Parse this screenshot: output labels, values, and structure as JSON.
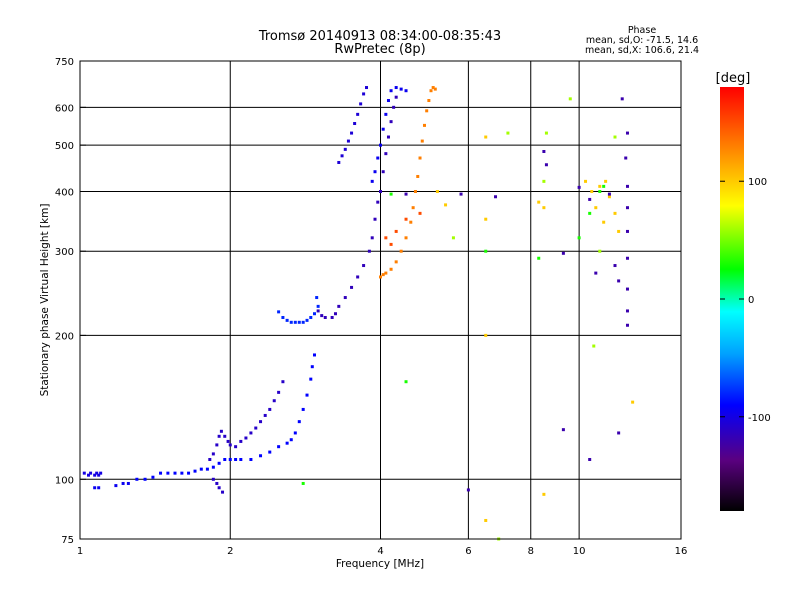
{
  "chart_data": {
    "type": "scatter",
    "title": "Tromsø 20140913 08:34:00-08:35:43",
    "subtitle": "RwPretec (8p)",
    "xlabel": "Frequency [MHz]",
    "ylabel": "Stationary phase Virtual Height [km]",
    "x_scale": "log",
    "y_scale": "log",
    "xlim": [
      1,
      16
    ],
    "ylim": [
      75,
      750
    ],
    "x_ticks": [
      1,
      2,
      4,
      6,
      8,
      10,
      16
    ],
    "y_ticks": [
      75,
      100,
      200,
      300,
      400,
      500,
      600,
      750
    ],
    "grid": true,
    "phase_header": "Phase",
    "phase_stats": [
      "mean, sd,O: -71.5, 14.6",
      "mean, sd,X: 106.6, 21.4"
    ],
    "colorbar": {
      "label": "[deg]",
      "range": [
        -180,
        180
      ],
      "ticks": [
        100,
        0,
        -100
      ],
      "colors": [
        "#000000",
        "#5a0080",
        "#0000ff",
        "#00a0ff",
        "#00ffff",
        "#00ff00",
        "#ffff00",
        "#ff8000",
        "#ff0000"
      ]
    },
    "series": [
      {
        "phase": -100,
        "points": [
          [
            1.02,
            103
          ],
          [
            1.05,
            103
          ],
          [
            1.08,
            103
          ],
          [
            1.1,
            103
          ],
          [
            1.04,
            102
          ],
          [
            1.07,
            102
          ],
          [
            1.09,
            102
          ]
        ]
      },
      {
        "phase": -95,
        "points": [
          [
            1.07,
            96
          ],
          [
            1.09,
            96
          ],
          [
            1.18,
            97
          ],
          [
            1.22,
            98
          ],
          [
            1.25,
            98
          ]
        ]
      },
      {
        "phase": -90,
        "points": [
          [
            1.3,
            100
          ],
          [
            1.35,
            100
          ],
          [
            1.4,
            101
          ],
          [
            1.45,
            103
          ],
          [
            1.5,
            103
          ],
          [
            1.55,
            103
          ],
          [
            1.6,
            103
          ],
          [
            1.65,
            103
          ],
          [
            1.7,
            104
          ],
          [
            1.75,
            105
          ],
          [
            1.8,
            105
          ],
          [
            1.85,
            106
          ],
          [
            1.9,
            108
          ],
          [
            1.95,
            110
          ],
          [
            2.0,
            110
          ],
          [
            2.05,
            110
          ],
          [
            2.1,
            110
          ],
          [
            2.2,
            110
          ],
          [
            2.3,
            112
          ],
          [
            2.4,
            114
          ],
          [
            2.5,
            117
          ],
          [
            2.6,
            119
          ],
          [
            2.65,
            121
          ],
          [
            2.7,
            125
          ],
          [
            2.75,
            132
          ],
          [
            2.8,
            140
          ],
          [
            2.85,
            150
          ],
          [
            2.9,
            162
          ],
          [
            2.92,
            172
          ],
          [
            2.95,
            182
          ]
        ]
      },
      {
        "phase": -110,
        "points": [
          [
            1.82,
            110
          ],
          [
            1.85,
            113
          ],
          [
            1.88,
            118
          ],
          [
            1.9,
            123
          ],
          [
            1.92,
            126
          ],
          [
            1.95,
            123
          ],
          [
            1.98,
            120
          ],
          [
            2.0,
            118
          ],
          [
            2.05,
            117
          ],
          [
            2.1,
            120
          ],
          [
            2.15,
            122
          ],
          [
            2.2,
            125
          ],
          [
            2.25,
            128
          ],
          [
            2.3,
            132
          ],
          [
            2.35,
            136
          ],
          [
            2.4,
            140
          ],
          [
            2.45,
            146
          ],
          [
            2.5,
            152
          ],
          [
            2.55,
            160
          ],
          [
            1.85,
            100
          ],
          [
            1.88,
            98
          ],
          [
            1.9,
            96
          ],
          [
            1.93,
            94
          ]
        ]
      },
      {
        "phase": -80,
        "points": [
          [
            2.5,
            224
          ],
          [
            2.55,
            218
          ],
          [
            2.6,
            215
          ],
          [
            2.65,
            213
          ],
          [
            2.7,
            213
          ],
          [
            2.75,
            213
          ],
          [
            2.8,
            213
          ],
          [
            2.85,
            215
          ],
          [
            2.9,
            218
          ],
          [
            2.95,
            222
          ],
          [
            3.0,
            230
          ],
          [
            2.98,
            240
          ]
        ]
      },
      {
        "phase": -115,
        "points": [
          [
            3.0,
            225
          ],
          [
            3.05,
            220
          ],
          [
            3.1,
            218
          ],
          [
            3.2,
            218
          ],
          [
            3.25,
            222
          ],
          [
            3.3,
            230
          ],
          [
            3.4,
            240
          ],
          [
            3.5,
            252
          ],
          [
            3.6,
            265
          ],
          [
            3.7,
            280
          ],
          [
            3.8,
            300
          ],
          [
            3.85,
            320
          ],
          [
            3.9,
            350
          ],
          [
            3.95,
            380
          ],
          [
            4.0,
            400
          ],
          [
            4.05,
            440
          ],
          [
            4.1,
            480
          ],
          [
            4.15,
            520
          ],
          [
            4.2,
            560
          ],
          [
            4.25,
            600
          ],
          [
            4.3,
            630
          ]
        ]
      },
      {
        "phase": -105,
        "points": [
          [
            3.3,
            460
          ],
          [
            3.35,
            475
          ],
          [
            3.4,
            490
          ],
          [
            3.45,
            510
          ],
          [
            3.5,
            530
          ],
          [
            3.55,
            555
          ],
          [
            3.6,
            580
          ],
          [
            3.65,
            610
          ],
          [
            3.7,
            640
          ],
          [
            3.75,
            660
          ]
        ]
      },
      {
        "phase": -95,
        "points": [
          [
            3.85,
            420
          ],
          [
            3.9,
            440
          ],
          [
            3.95,
            470
          ],
          [
            4.0,
            500
          ],
          [
            4.05,
            540
          ],
          [
            4.1,
            580
          ],
          [
            4.15,
            620
          ],
          [
            4.2,
            650
          ],
          [
            4.3,
            660
          ],
          [
            4.4,
            655
          ],
          [
            4.5,
            650
          ]
        ]
      },
      {
        "phase": 130,
        "points": [
          [
            4.0,
            265
          ],
          [
            4.05,
            268
          ],
          [
            4.1,
            270
          ],
          [
            4.2,
            275
          ],
          [
            4.3,
            285
          ],
          [
            4.4,
            300
          ],
          [
            4.5,
            320
          ],
          [
            4.6,
            345
          ],
          [
            4.65,
            370
          ],
          [
            4.7,
            400
          ],
          [
            4.75,
            430
          ],
          [
            4.8,
            470
          ],
          [
            4.85,
            510
          ],
          [
            4.9,
            550
          ],
          [
            4.95,
            590
          ],
          [
            5.0,
            620
          ],
          [
            5.05,
            650
          ],
          [
            5.1,
            660
          ],
          [
            5.15,
            655
          ]
        ]
      },
      {
        "phase": 150,
        "points": [
          [
            4.1,
            320
          ],
          [
            4.2,
            310
          ],
          [
            4.3,
            330
          ],
          [
            4.5,
            350
          ],
          [
            4.8,
            360
          ]
        ]
      },
      {
        "phase": 100,
        "points": [
          [
            5.2,
            400
          ],
          [
            5.4,
            375
          ],
          [
            6.5,
            520
          ],
          [
            6.5,
            350
          ],
          [
            6.5,
            200
          ],
          [
            6.5,
            82
          ],
          [
            8.3,
            380
          ],
          [
            8.5,
            370
          ],
          [
            10.3,
            420
          ],
          [
            10.6,
            400
          ],
          [
            11.0,
            410
          ],
          [
            11.3,
            420
          ],
          [
            11.5,
            390
          ],
          [
            11.8,
            360
          ],
          [
            12.0,
            330
          ],
          [
            11.2,
            345
          ],
          [
            8.5,
            93
          ],
          [
            10.8,
            370
          ],
          [
            12.8,
            145
          ]
        ]
      },
      {
        "phase": -120,
        "points": [
          [
            5.8,
            395
          ],
          [
            6.8,
            390
          ],
          [
            8.5,
            485
          ],
          [
            8.6,
            455
          ],
          [
            9.3,
            297
          ],
          [
            10.0,
            408
          ],
          [
            10.5,
            385
          ],
          [
            11.5,
            395
          ],
          [
            12.5,
            410
          ],
          [
            12.5,
            370
          ],
          [
            12.5,
            330
          ],
          [
            12.5,
            290
          ],
          [
            12.5,
            250
          ],
          [
            12.5,
            225
          ],
          [
            12.5,
            210
          ],
          [
            11.8,
            280
          ],
          [
            12.0,
            260
          ],
          [
            12.2,
            625
          ],
          [
            12.5,
            530
          ],
          [
            12.4,
            470
          ],
          [
            9.3,
            127
          ],
          [
            10.8,
            270
          ],
          [
            12.0,
            125
          ],
          [
            10.5,
            110
          ],
          [
            6.0,
            95
          ],
          [
            4.5,
            395
          ]
        ]
      },
      {
        "phase": 30,
        "points": [
          [
            4.2,
            395
          ],
          [
            6.5,
            300
          ],
          [
            8.3,
            290
          ],
          [
            10.0,
            320
          ],
          [
            11.0,
            400
          ],
          [
            11.2,
            410
          ],
          [
            2.8,
            98
          ],
          [
            4.5,
            160
          ],
          [
            10.5,
            360
          ]
        ]
      },
      {
        "phase": 60,
        "points": [
          [
            5.6,
            320
          ],
          [
            8.6,
            530
          ],
          [
            9.6,
            625
          ],
          [
            7.2,
            530
          ],
          [
            6.9,
            75
          ],
          [
            10.7,
            190
          ],
          [
            8.5,
            420
          ],
          [
            11.8,
            520
          ],
          [
            11.0,
            300
          ]
        ]
      }
    ]
  }
}
